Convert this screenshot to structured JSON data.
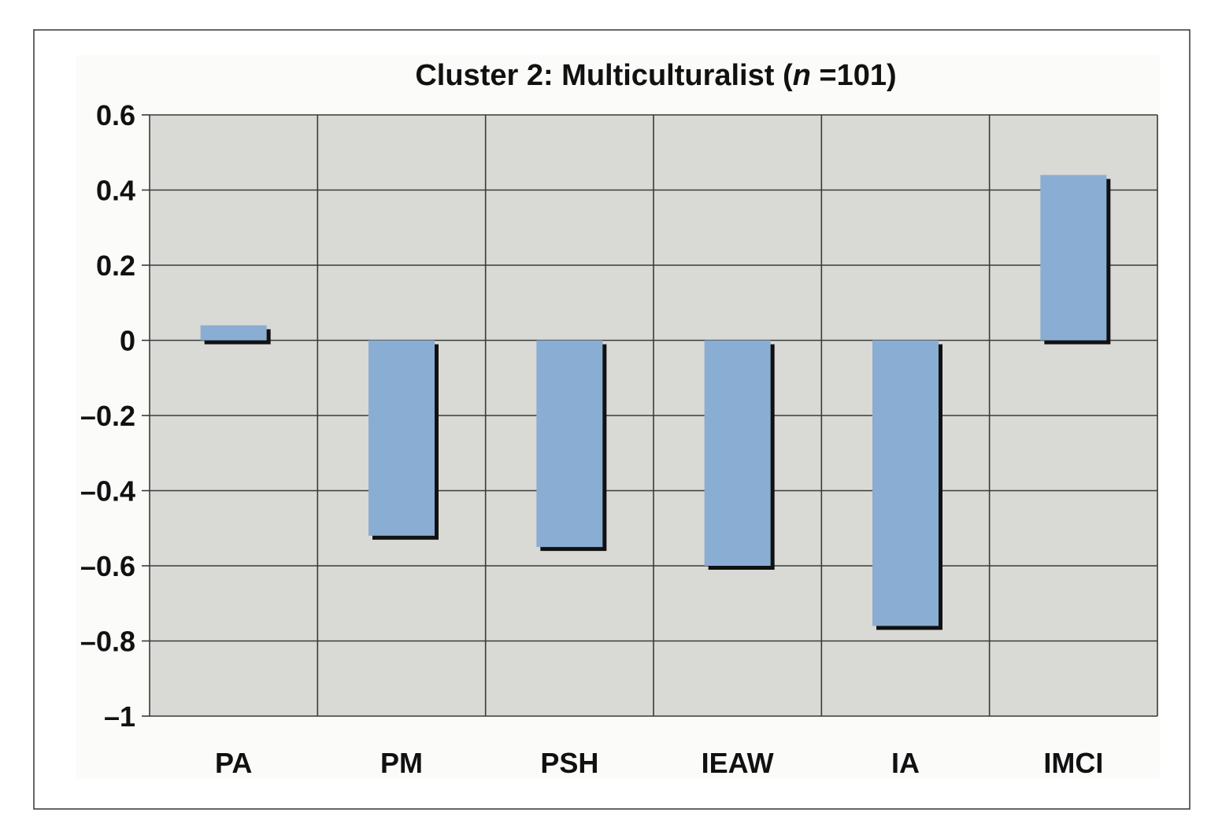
{
  "chart_data": {
    "type": "bar",
    "title": "Cluster 2: Multiculturalist (",
    "title_italic": "n",
    "title_suffix": " =101)",
    "categories": [
      "PA",
      "PM",
      "PSH",
      "IEAW",
      "IA",
      "IMCI"
    ],
    "values": [
      0.04,
      -0.52,
      -0.55,
      -0.6,
      -0.76,
      0.44
    ],
    "ylim": [
      -1,
      0.6
    ],
    "yticks": [
      0.6,
      0.4,
      0.2,
      0,
      -0.2,
      -0.4,
      -0.6,
      -0.8,
      -1
    ],
    "ytick_labels": [
      "0.6",
      "0.4",
      "0.2",
      "0",
      "–0.2",
      "–0.4",
      "–0.6",
      "–0.8",
      "–1"
    ],
    "xlabel": "",
    "ylabel": "",
    "grid": true,
    "colors": {
      "bar": "#8aadd3",
      "bar_shadow": "#111111",
      "plot_background": "#d9d9d6",
      "grid": "#3a3a3a",
      "frame": "#333333"
    }
  }
}
